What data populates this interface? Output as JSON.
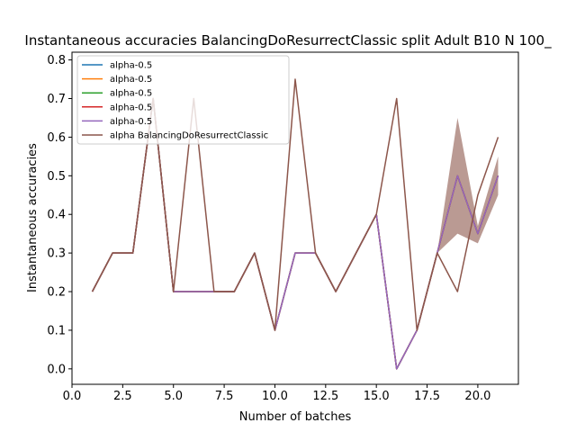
{
  "chart_data": {
    "type": "line",
    "title": "Instantaneous accuracies BalancingDoResurrectClassic split Adult B10 N 100_",
    "xlabel": "Number of batches",
    "ylabel": "Instantaneous accuracies",
    "xlim": [
      0.0,
      22.0
    ],
    "ylim": [
      -0.04,
      0.82
    ],
    "xticks": [
      "0.0",
      "2.5",
      "5.0",
      "7.5",
      "10.0",
      "12.5",
      "15.0",
      "17.5",
      "20.0"
    ],
    "yticks": [
      "0.0",
      "0.1",
      "0.2",
      "0.3",
      "0.4",
      "0.5",
      "0.6",
      "0.7",
      "0.8"
    ],
    "grid": false,
    "legend_position": "top-left",
    "x": [
      1,
      2,
      3,
      4,
      5,
      6,
      7,
      8,
      9,
      10,
      11,
      12,
      13,
      14,
      15,
      16,
      17,
      18,
      19,
      20,
      21
    ],
    "series": [
      {
        "name": "alpha-0.5",
        "color": "#1f77b4",
        "values": [
          0.2,
          0.3,
          0.3,
          0.7,
          0.2,
          0.2,
          0.2,
          0.2,
          0.3,
          0.1,
          0.3,
          0.3,
          0.2,
          0.3,
          0.4,
          0.0,
          0.1,
          0.3,
          0.5,
          0.35,
          0.5
        ]
      },
      {
        "name": "alpha-0.5",
        "color": "#ff7f0e",
        "values": [
          0.2,
          0.3,
          0.3,
          0.7,
          0.2,
          0.2,
          0.2,
          0.2,
          0.3,
          0.1,
          0.3,
          0.3,
          0.2,
          0.3,
          0.4,
          0.0,
          0.1,
          0.3,
          0.5,
          0.35,
          0.5
        ]
      },
      {
        "name": "alpha-0.5",
        "color": "#2ca02c",
        "values": [
          0.2,
          0.3,
          0.3,
          0.7,
          0.2,
          0.2,
          0.2,
          0.2,
          0.3,
          0.1,
          0.3,
          0.3,
          0.2,
          0.3,
          0.4,
          0.0,
          0.1,
          0.3,
          0.5,
          0.35,
          0.5
        ]
      },
      {
        "name": "alpha-0.5",
        "color": "#d62728",
        "values": [
          0.2,
          0.3,
          0.3,
          0.7,
          0.2,
          0.2,
          0.2,
          0.2,
          0.3,
          0.1,
          0.3,
          0.3,
          0.2,
          0.3,
          0.4,
          0.0,
          0.1,
          0.3,
          0.5,
          0.35,
          0.5
        ]
      },
      {
        "name": "alpha-0.5",
        "color": "#9467bd",
        "values": [
          0.2,
          0.3,
          0.3,
          0.7,
          0.2,
          0.2,
          0.2,
          0.2,
          0.3,
          0.1,
          0.3,
          0.3,
          0.2,
          0.3,
          0.4,
          0.0,
          0.1,
          0.3,
          0.5,
          0.35,
          0.5
        ]
      },
      {
        "name": "alpha BalancingDoResurrectClassic",
        "color": "#8c564b",
        "values": [
          0.2,
          0.3,
          0.3,
          0.7,
          0.2,
          0.7,
          0.2,
          0.2,
          0.3,
          0.1,
          0.75,
          0.3,
          0.2,
          0.3,
          0.4,
          0.7,
          0.1,
          0.3,
          0.2,
          0.45,
          0.6
        ]
      }
    ],
    "band": {
      "color": "#8c564b",
      "opacity": 0.6,
      "x": [
        18,
        19,
        20,
        21
      ],
      "lower": [
        0.3,
        0.35,
        0.325,
        0.45
      ],
      "upper": [
        0.3,
        0.65,
        0.37,
        0.55
      ]
    }
  }
}
